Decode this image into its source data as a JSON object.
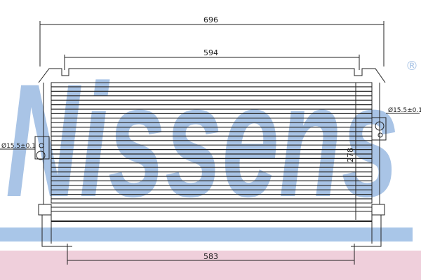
{
  "watermark": {
    "text": "Nissens",
    "registered": "®",
    "color": "#a9c4e6"
  },
  "bands": {
    "blue": "#a9c6e8",
    "pink": "#efcfdb"
  },
  "dimensions": {
    "overall_width": "696",
    "mount_width": "594",
    "bottom_width": "583",
    "core_height": "278",
    "left_port": "Ø15.5±0.1",
    "right_port": "Ø15.5±0.1"
  }
}
